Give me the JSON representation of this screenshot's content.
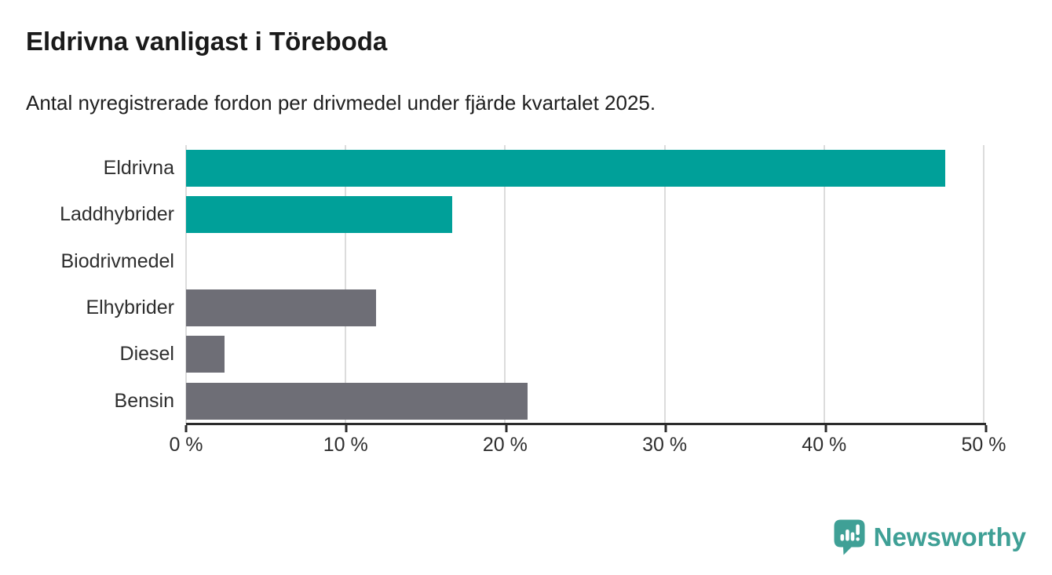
{
  "chart_data": {
    "type": "bar",
    "orientation": "horizontal",
    "title": "Eldrivna vanligast i Töreboda",
    "subtitle": "Antal nyregistrerade fordon per drivmedel under fjärde kvartalet 2025.",
    "categories": [
      "Eldrivna",
      "Laddhybrider",
      "Biodrivmedel",
      "Elhybrider",
      "Diesel",
      "Bensin"
    ],
    "values": [
      47.6,
      16.7,
      0,
      11.9,
      2.4,
      21.4
    ],
    "unit": "%",
    "xlabel": "",
    "ylabel": "",
    "xlim": [
      0,
      50
    ],
    "x_ticks": [
      0,
      10,
      20,
      30,
      40,
      50
    ],
    "x_tick_labels": [
      "0 %",
      "10 %",
      "20 %",
      "30 %",
      "40 %",
      "50 %"
    ],
    "bar_colors": [
      "#00a099",
      "#00a099",
      "#6e6e76",
      "#6e6e76",
      "#6e6e76",
      "#6e6e76"
    ],
    "grid": "vertical-gridlines-on",
    "legend": "none"
  },
  "colors": {
    "accent_teal": "#00a099",
    "neutral_gray": "#6e6e76",
    "brand_teal": "#3fa096",
    "gridline": "#dcdcdc",
    "axis": "#2b2b2b"
  },
  "footer": {
    "brand": "Newsworthy"
  }
}
